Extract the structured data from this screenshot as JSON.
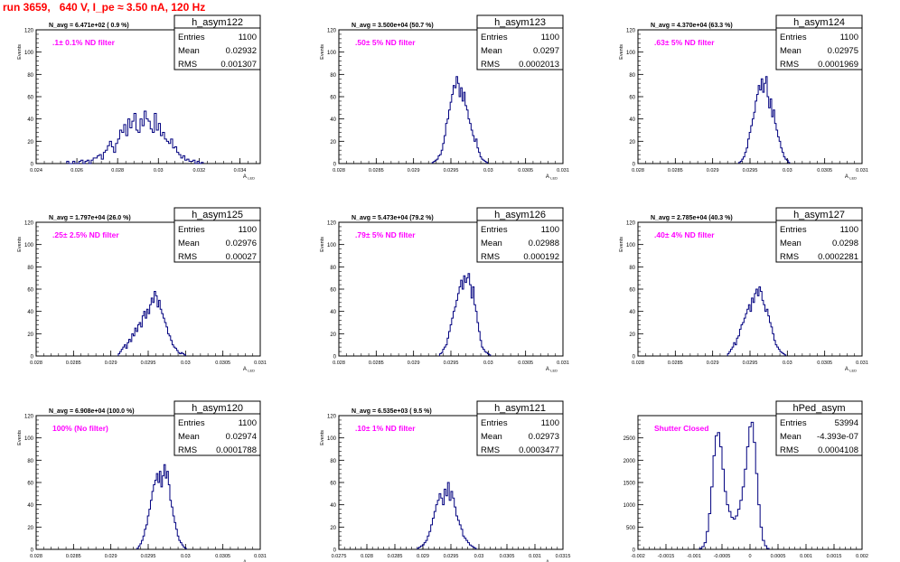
{
  "page_title": "run 3659,   640 V, I_pe ≈ 3.50 nA, 120 Hz",
  "chart_data": [
    {
      "type": "histogram",
      "name": "h_asym122",
      "title": "N_avg = 6.471e+02 ( 0.9 %)",
      "annotation": ".1± 0.1% ND filter",
      "stats": {
        "labels": [
          "Entries",
          "Mean",
          "RMS"
        ],
        "values": [
          "1100",
          "0.02932",
          "0.001307"
        ]
      },
      "xlabel": "A_LED",
      "ylabel": "Events",
      "xlim": [
        0.024,
        0.035
      ],
      "ylim": [
        0,
        120
      ],
      "xticks": [
        "0.024",
        "0.026",
        "0.028",
        "0.03",
        "0.032",
        "0.034"
      ],
      "xtick_vals": [
        0.024,
        0.026,
        0.028,
        0.03,
        0.032,
        0.034
      ],
      "yticks": [
        0,
        20,
        40,
        60,
        80,
        100,
        120
      ],
      "bins": {
        "start": 0.0255,
        "width": 0.0001,
        "counts": [
          2,
          0,
          0,
          2,
          0,
          0,
          2,
          3,
          0,
          2,
          3,
          0,
          3,
          5,
          5,
          7,
          8,
          4,
          10,
          12,
          16,
          20,
          15,
          10,
          18,
          22,
          30,
          28,
          35,
          25,
          40,
          32,
          38,
          45,
          30,
          28,
          40,
          34,
          47,
          40,
          38,
          31,
          28,
          45,
          30,
          36,
          25,
          28,
          22,
          20,
          18,
          22,
          14,
          15,
          10,
          8,
          5,
          7,
          3,
          4,
          2,
          2,
          3,
          0,
          2,
          0,
          1
        ]
      }
    },
    {
      "type": "histogram",
      "name": "h_asym123",
      "title": "N_avg = 3.500e+04 (50.7 %)",
      "annotation": ".50± 5% ND filter",
      "stats": {
        "labels": [
          "Entries",
          "Mean",
          "RMS"
        ],
        "values": [
          "1100",
          "0.0297",
          "0.0002013"
        ]
      },
      "xlabel": "A_LED",
      "ylabel": "Events",
      "xlim": [
        0.028,
        0.031
      ],
      "ylim": [
        0,
        120
      ],
      "xticks": [
        "0.028",
        "0.0285",
        "0.029",
        "0.0295",
        "0.03",
        "0.0305",
        "0.031"
      ],
      "xtick_vals": [
        0.028,
        0.0285,
        0.029,
        0.0295,
        0.03,
        0.0305,
        0.031
      ],
      "yticks": [
        0,
        20,
        40,
        60,
        80,
        100,
        120
      ],
      "bins": {
        "start": 0.02925,
        "width": 2e-05,
        "counts": [
          1,
          2,
          3,
          4,
          7,
          8,
          12,
          18,
          25,
          36,
          40,
          48,
          55,
          62,
          70,
          68,
          78,
          72,
          60,
          68,
          56,
          64,
          52,
          48,
          40,
          36,
          30,
          25,
          20,
          22,
          14,
          10,
          6,
          4,
          3,
          2,
          1
        ]
      }
    },
    {
      "type": "histogram",
      "name": "h_asym124",
      "title": "N_avg = 4.370e+04 (63.3 %)",
      "annotation": ".63± 5% ND filter",
      "stats": {
        "labels": [
          "Entries",
          "Mean",
          "RMS"
        ],
        "values": [
          "1100",
          "0.02975",
          "0.0001969"
        ]
      },
      "xlabel": "A_LED",
      "ylabel": "Events",
      "xlim": [
        0.028,
        0.031
      ],
      "ylim": [
        0,
        120
      ],
      "xticks": [
        "0.028",
        "0.0285",
        "0.029",
        "0.0295",
        "0.03",
        "0.0305",
        "0.031"
      ],
      "xtick_vals": [
        0.028,
        0.0285,
        0.029,
        0.0295,
        0.03,
        0.0305,
        0.031
      ],
      "yticks": [
        0,
        20,
        40,
        60,
        80,
        100,
        120
      ],
      "bins": {
        "start": 0.02935,
        "width": 2e-05,
        "counts": [
          1,
          2,
          4,
          6,
          10,
          14,
          22,
          28,
          34,
          40,
          46,
          56,
          62,
          70,
          66,
          76,
          64,
          72,
          78,
          60,
          50,
          58,
          42,
          48,
          36,
          30,
          24,
          20,
          14,
          10,
          6,
          4,
          3,
          1
        ]
      }
    },
    {
      "type": "histogram",
      "name": "h_asym125",
      "title": "N_avg = 1.797e+04 (26.0 %)",
      "annotation": ".25± 2.5% ND filter",
      "stats": {
        "labels": [
          "Entries",
          "Mean",
          "RMS"
        ],
        "values": [
          "1100",
          "0.02976",
          "0.00027"
        ]
      },
      "xlabel": "A_LED",
      "ylabel": "Events",
      "xlim": [
        0.028,
        0.031
      ],
      "ylim": [
        0,
        120
      ],
      "xticks": [
        "0.028",
        "0.0285",
        "0.029",
        "0.0295",
        "0.03",
        "0.0305",
        "0.031"
      ],
      "xtick_vals": [
        0.028,
        0.0285,
        0.029,
        0.0295,
        0.03,
        0.0305,
        0.031
      ],
      "yticks": [
        0,
        20,
        40,
        60,
        80,
        100,
        120
      ],
      "bins": {
        "start": 0.0291,
        "width": 2e-05,
        "counts": [
          2,
          4,
          6,
          8,
          10,
          7,
          12,
          15,
          13,
          20,
          18,
          25,
          22,
          28,
          30,
          26,
          36,
          40,
          34,
          42,
          38,
          46,
          52,
          48,
          58,
          54,
          44,
          50,
          42,
          38,
          34,
          30,
          26,
          20,
          18,
          14,
          10,
          8,
          7,
          5,
          3,
          2,
          3,
          2,
          1
        ]
      }
    },
    {
      "type": "histogram",
      "name": "h_asym126",
      "title": "N_avg = 5.473e+04 (79.2 %)",
      "annotation": ".79± 5% ND filter",
      "stats": {
        "labels": [
          "Entries",
          "Mean",
          "RMS"
        ],
        "values": [
          "1100",
          "0.02988",
          "0.000192"
        ]
      },
      "xlabel": "A_LED",
      "ylabel": "Events",
      "xlim": [
        0.028,
        0.031
      ],
      "ylim": [
        0,
        120
      ],
      "xticks": [
        "0.028",
        "0.0285",
        "0.029",
        "0.0295",
        "0.03",
        "0.0305",
        "0.031"
      ],
      "xtick_vals": [
        0.028,
        0.0285,
        0.029,
        0.0295,
        0.03,
        0.0305,
        0.031
      ],
      "yticks": [
        0,
        20,
        40,
        60,
        80,
        100,
        120
      ],
      "bins": {
        "start": 0.02935,
        "width": 2e-05,
        "counts": [
          2,
          3,
          6,
          8,
          10,
          16,
          22,
          28,
          34,
          40,
          44,
          50,
          56,
          62,
          68,
          60,
          72,
          66,
          70,
          74,
          64,
          52,
          62,
          46,
          40,
          30,
          22,
          14,
          8,
          6,
          4,
          3,
          2,
          1
        ]
      }
    },
    {
      "type": "histogram",
      "name": "h_asym127",
      "title": "N_avg = 2.785e+04 (40.3 %)",
      "annotation": ".40± 4% ND filter",
      "stats": {
        "labels": [
          "Entries",
          "Mean",
          "RMS"
        ],
        "values": [
          "1100",
          "0.0298",
          "0.0002281"
        ]
      },
      "xlabel": "A_LED",
      "ylabel": "Events",
      "xlim": [
        0.028,
        0.031
      ],
      "ylim": [
        0,
        120
      ],
      "xticks": [
        "0.028",
        "0.0285",
        "0.029",
        "0.0295",
        "0.03",
        "0.0305",
        "0.031"
      ],
      "xtick_vals": [
        0.028,
        0.0285,
        0.029,
        0.0295,
        0.03,
        0.0305,
        0.031
      ],
      "yticks": [
        0,
        20,
        40,
        60,
        80,
        100,
        120
      ],
      "bins": {
        "start": 0.0292,
        "width": 2e-05,
        "counts": [
          2,
          4,
          6,
          8,
          12,
          10,
          16,
          18,
          24,
          28,
          30,
          34,
          38,
          42,
          46,
          40,
          52,
          48,
          56,
          60,
          54,
          62,
          58,
          50,
          46,
          40,
          42,
          36,
          30,
          26,
          20,
          14,
          10,
          8,
          6,
          4,
          3,
          2,
          1
        ]
      }
    },
    {
      "type": "histogram",
      "name": "h_asym120",
      "title": "N_avg = 6.908e+04 (100.0 %)",
      "annotation": "100% (No filter)",
      "stats": {
        "labels": [
          "Entries",
          "Mean",
          "RMS"
        ],
        "values": [
          "1100",
          "0.02974",
          "0.0001788"
        ]
      },
      "xlabel": "A_LED",
      "ylabel": "Events",
      "xlim": [
        0.028,
        0.031
      ],
      "ylim": [
        0,
        120
      ],
      "xticks": [
        "0.028",
        "0.0285",
        "0.029",
        "0.0295",
        "0.03",
        "0.0305",
        "0.031"
      ],
      "xtick_vals": [
        0.028,
        0.0285,
        0.029,
        0.0295,
        0.03,
        0.0305,
        0.031
      ],
      "yticks": [
        0,
        20,
        40,
        60,
        80,
        100,
        120
      ],
      "bins": {
        "start": 0.02935,
        "width": 2e-05,
        "counts": [
          1,
          3,
          5,
          8,
          12,
          18,
          22,
          30,
          36,
          44,
          52,
          58,
          62,
          68,
          60,
          70,
          56,
          66,
          76,
          64,
          70,
          58,
          44,
          38,
          30,
          24,
          18,
          12,
          8,
          6,
          4,
          2,
          1
        ]
      }
    },
    {
      "type": "histogram",
      "name": "h_asym121",
      "title": "N_avg = 6.535e+03 ( 9.5 %)",
      "annotation": ".10± 1% ND filter",
      "stats": {
        "labels": [
          "Entries",
          "Mean",
          "RMS"
        ],
        "values": [
          "1100",
          "0.02973",
          "0.0003477"
        ]
      },
      "xlabel": "A_LED",
      "ylabel": "Events",
      "xlim": [
        0.0275,
        0.0315
      ],
      "ylim": [
        0,
        120
      ],
      "xticks": [
        "0.0275",
        "0.028",
        "0.0285",
        "0.029",
        "0.0295",
        "0.03",
        "0.0305",
        "0.031",
        "0.0315"
      ],
      "xtick_vals": [
        0.0275,
        0.028,
        0.0285,
        0.029,
        0.0295,
        0.03,
        0.0305,
        0.031,
        0.0315
      ],
      "yticks": [
        0,
        20,
        40,
        60,
        80,
        100,
        120
      ],
      "bins": {
        "start": 0.0289,
        "width": 3e-05,
        "counts": [
          1,
          2,
          3,
          4,
          6,
          8,
          12,
          16,
          22,
          28,
          34,
          40,
          44,
          50,
          46,
          40,
          54,
          48,
          60,
          44,
          52,
          46,
          38,
          30,
          26,
          22,
          18,
          12,
          10,
          8,
          6,
          4,
          3,
          2,
          1
        ]
      }
    },
    {
      "type": "histogram",
      "name": "hPed_asym",
      "title": "",
      "annotation": "Shutter Closed",
      "stats": {
        "labels": [
          "Entries",
          "Mean",
          "RMS"
        ],
        "values": [
          "53994",
          "-4.393e-07",
          "0.0004108"
        ]
      },
      "xlabel": "",
      "ylabel": "",
      "xlim": [
        -0.002,
        0.002
      ],
      "ylim": [
        0,
        3000
      ],
      "xticks": [
        "-0.002",
        "-0.0015",
        "-0.001",
        "-0.0005",
        "0",
        "0.0005",
        "0.001",
        "0.0015",
        "0.002"
      ],
      "xtick_vals": [
        -0.002,
        -0.0015,
        -0.001,
        -0.0005,
        0,
        0.0005,
        0.001,
        0.0015,
        0.002
      ],
      "yticks": [
        0,
        500,
        1000,
        1500,
        2000,
        2500
      ],
      "bins": {
        "start": -0.0009,
        "width": 4e-05,
        "counts": [
          20,
          60,
          150,
          400,
          800,
          1400,
          2100,
          2550,
          2620,
          2300,
          1800,
          1300,
          1000,
          850,
          720,
          680,
          750,
          900,
          1100,
          1400,
          1800,
          2300,
          2750,
          2850,
          2400,
          1700,
          1000,
          500,
          200,
          80,
          20
        ]
      }
    }
  ],
  "colors": {
    "line": "#00007f",
    "annotation": "#ff00ff",
    "title": "#ff0000",
    "text": "#000000",
    "frame": "#000000"
  }
}
